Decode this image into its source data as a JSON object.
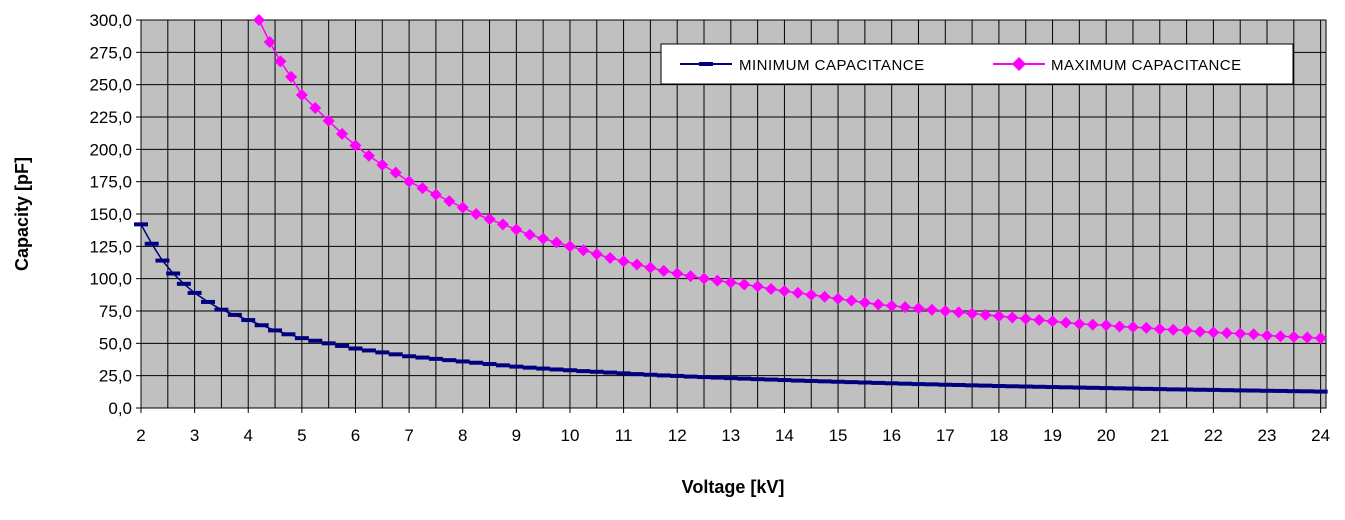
{
  "chart_data": {
    "type": "line",
    "title": "",
    "xlabel": "Voltage [kV]",
    "ylabel": "Capacity [pF]",
    "xlim": [
      2,
      24.1
    ],
    "ylim": [
      0,
      300
    ],
    "x_ticks": [
      2,
      3,
      4,
      5,
      6,
      7,
      8,
      9,
      10,
      11,
      12,
      13,
      14,
      15,
      16,
      17,
      18,
      19,
      20,
      21,
      22,
      23,
      24
    ],
    "x_tick_labels": [
      "2",
      "3",
      "4",
      "5",
      "6",
      "7",
      "8",
      "9",
      "10",
      "11",
      "12",
      "13",
      "14",
      "15",
      "16",
      "17",
      "18",
      "19",
      "20",
      "21",
      "22",
      "23",
      "24"
    ],
    "y_ticks": [
      0,
      25,
      50,
      75,
      100,
      125,
      150,
      175,
      200,
      225,
      250,
      275,
      300
    ],
    "y_tick_labels": [
      "0,0",
      "25,0",
      "50,0",
      "75,0",
      "100,0",
      "125,0",
      "150,0",
      "175,0",
      "200,0",
      "225,0",
      "250,0",
      "275,0",
      "300,0"
    ],
    "grid": true,
    "legend_position": "top-right",
    "plot_background": "#c0c0c0",
    "series": [
      {
        "name": "MINIMUM CAPACITANCE",
        "color": "#000080",
        "marker": "dash",
        "x": [
          2.0,
          2.2,
          2.4,
          2.6,
          2.8,
          3.0,
          3.25,
          3.5,
          3.75,
          4.0,
          4.25,
          4.5,
          4.75,
          5.0,
          5.25,
          5.5,
          5.75,
          6.0,
          6.25,
          6.5,
          6.75,
          7.0,
          7.25,
          7.5,
          7.75,
          8.0,
          8.25,
          8.5,
          8.75,
          9.0,
          9.25,
          9.5,
          9.75,
          10.0,
          10.25,
          10.5,
          10.75,
          11.0,
          11.25,
          11.5,
          11.75,
          12.0,
          12.25,
          12.5,
          12.75,
          13.0,
          13.25,
          13.5,
          13.75,
          14.0,
          14.25,
          14.5,
          14.75,
          15.0,
          15.25,
          15.5,
          15.75,
          16.0,
          16.25,
          16.5,
          16.75,
          17.0,
          17.25,
          17.5,
          17.75,
          18.0,
          18.25,
          18.5,
          18.75,
          19.0,
          19.25,
          19.5,
          19.75,
          20.0,
          20.25,
          20.5,
          20.75,
          21.0,
          21.25,
          21.5,
          21.75,
          22.0,
          22.25,
          22.5,
          22.75,
          23.0,
          23.25,
          23.5,
          23.75,
          24.0
        ],
        "y": [
          142.0,
          127.0,
          114.0,
          104.0,
          96.0,
          89.0,
          82.0,
          76.0,
          72.0,
          68.0,
          64.0,
          60.0,
          57.0,
          54.0,
          52.0,
          50.0,
          48.0,
          46.0,
          44.5,
          43.0,
          41.5,
          40.0,
          39.0,
          38.0,
          37.0,
          36.0,
          35.0,
          34.0,
          33.0,
          32.0,
          31.2,
          30.5,
          29.8,
          29.2,
          28.5,
          28.0,
          27.4,
          26.8,
          26.2,
          25.7,
          25.2,
          24.8,
          24.3,
          23.9,
          23.5,
          23.1,
          22.7,
          22.3,
          22.0,
          21.6,
          21.2,
          20.9,
          20.6,
          20.3,
          20.0,
          19.7,
          19.4,
          19.1,
          18.8,
          18.5,
          18.3,
          18.0,
          17.8,
          17.5,
          17.3,
          17.0,
          16.8,
          16.6,
          16.4,
          16.2,
          16.0,
          15.8,
          15.6,
          15.4,
          15.2,
          15.0,
          14.8,
          14.6,
          14.4,
          14.3,
          14.1,
          14.0,
          13.8,
          13.6,
          13.5,
          13.3,
          13.2,
          13.0,
          12.9,
          12.7
        ]
      },
      {
        "name": "MAXIMUM CAPACITANCE",
        "color": "#ff00ff",
        "marker": "diamond",
        "x": [
          4.2,
          4.4,
          4.6,
          4.8,
          5.0,
          5.25,
          5.5,
          5.75,
          6.0,
          6.25,
          6.5,
          6.75,
          7.0,
          7.25,
          7.5,
          7.75,
          8.0,
          8.25,
          8.5,
          8.75,
          9.0,
          9.25,
          9.5,
          9.75,
          10.0,
          10.25,
          10.5,
          10.75,
          11.0,
          11.25,
          11.5,
          11.75,
          12.0,
          12.25,
          12.5,
          12.75,
          13.0,
          13.25,
          13.5,
          13.75,
          14.0,
          14.25,
          14.5,
          14.75,
          15.0,
          15.25,
          15.5,
          15.75,
          16.0,
          16.25,
          16.5,
          16.75,
          17.0,
          17.25,
          17.5,
          17.75,
          18.0,
          18.25,
          18.5,
          18.75,
          19.0,
          19.25,
          19.5,
          19.75,
          20.0,
          20.25,
          20.5,
          20.75,
          21.0,
          21.25,
          21.5,
          21.75,
          22.0,
          22.25,
          22.5,
          22.75,
          23.0,
          23.25,
          23.5,
          23.75,
          24.0
        ],
        "y": [
          300.0,
          283.0,
          268.0,
          256.0,
          242.0,
          232.0,
          222.0,
          212.0,
          203.0,
          195.0,
          188.0,
          182.0,
          175.0,
          170.0,
          165.0,
          160.0,
          155.0,
          150.0,
          146.0,
          142.0,
          138.0,
          134.0,
          131.0,
          128.0,
          125.0,
          122.0,
          119.0,
          116.0,
          113.5,
          111.0,
          108.5,
          106.0,
          104.0,
          102.0,
          100.0,
          98.5,
          97.0,
          95.5,
          94.0,
          92.0,
          90.5,
          89.0,
          87.5,
          86.0,
          84.5,
          83.0,
          81.5,
          80.0,
          79.0,
          78.0,
          77.0,
          76.0,
          75.0,
          74.0,
          73.0,
          72.0,
          71.0,
          70.0,
          69.0,
          68.0,
          67.0,
          66.0,
          65.0,
          64.5,
          64.0,
          63.0,
          62.5,
          62.0,
          61.0,
          60.5,
          60.0,
          59.0,
          58.5,
          58.0,
          57.5,
          57.0,
          56.0,
          55.5,
          55.0,
          54.5,
          54.0
        ]
      }
    ]
  }
}
